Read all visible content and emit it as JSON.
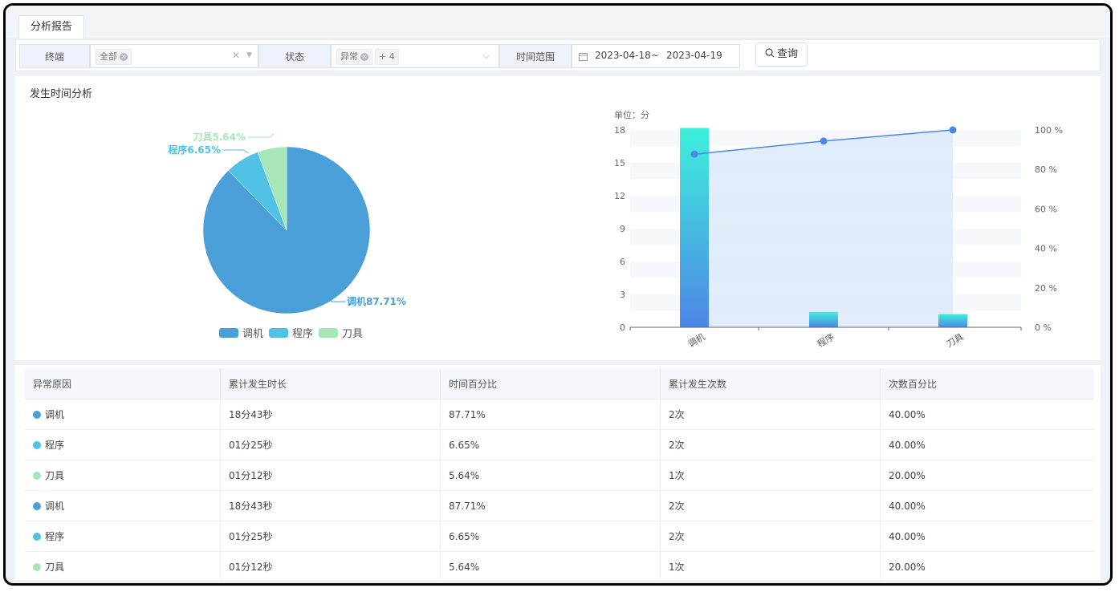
{
  "tab": {
    "label": "分析报告"
  },
  "filters": {
    "terminal_label": "终端",
    "terminal_tag": "全部",
    "status_label": "状态",
    "status_tag": "异常",
    "status_more": "+ 4",
    "time_label": "时间范围",
    "date_start": "2023-04-18",
    "date_sep": "~",
    "date_end": "2023-04-19",
    "query_label": "查询"
  },
  "section": {
    "title": "发生时间分析"
  },
  "colors": {
    "tiaoji": "#4a9fd8",
    "chengxu": "#4fc2e6",
    "daoju": "#a6e6b9",
    "line": "#4d86e6"
  },
  "pie": {
    "callouts": [
      "刀具5.64%",
      "程序6.65%",
      "调机87.71%"
    ],
    "legend": [
      "调机",
      "程序",
      "刀具"
    ]
  },
  "chart_data": [
    {
      "type": "pie",
      "labels": [
        "调机",
        "程序",
        "刀具"
      ],
      "values": [
        87.71,
        6.65,
        5.64
      ],
      "legend_position": "bottom"
    },
    {
      "type": "bar",
      "unit": "单位：分",
      "categories": [
        "调机",
        "程序",
        "刀具"
      ],
      "series": [
        {
          "values": [
            18.7,
            1.4,
            1.2
          ]
        }
      ],
      "line_series": [
        {
          "axis": "right",
          "values": [
            87.71,
            94.36,
            100
          ]
        }
      ],
      "ylim": [
        0,
        18
      ],
      "y_ticks": [
        "0",
        "3",
        "6",
        "9",
        "12",
        "15",
        "18"
      ],
      "y2lim": [
        0,
        100
      ],
      "y2_ticks": [
        "0 %",
        "20 %",
        "40 %",
        "60 %",
        "80 %",
        "100 %"
      ]
    }
  ],
  "table": {
    "headers": [
      "异常原因",
      "累计发生时长",
      "时间百分比",
      "累计发生次数",
      "次数百分比"
    ],
    "rows": [
      [
        "调机",
        "18分43秒",
        "87.71%",
        "2次",
        "40.00%"
      ],
      [
        "程序",
        "01分25秒",
        "6.65%",
        "2次",
        "40.00%"
      ],
      [
        "刀具",
        "01分12秒",
        "5.64%",
        "1次",
        "20.00%"
      ],
      [
        "调机",
        "18分43秒",
        "87.71%",
        "2次",
        "40.00%"
      ],
      [
        "程序",
        "01分25秒",
        "6.65%",
        "2次",
        "40.00%"
      ],
      [
        "刀具",
        "01分12秒",
        "5.64%",
        "1次",
        "20.00%"
      ]
    ]
  }
}
